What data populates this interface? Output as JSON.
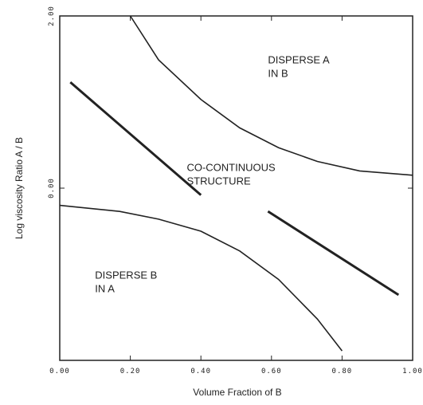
{
  "chart_data": {
    "type": "line",
    "xlabel": "Volume Fraction of B",
    "ylabel": "Log viscosity Ratio A / B",
    "xlim": [
      0,
      1
    ],
    "ylim": [
      -2,
      2
    ],
    "xticks": [
      {
        "value": 0,
        "label": "0.00"
      },
      {
        "value": 0.2,
        "label": "0.20"
      },
      {
        "value": 0.4,
        "label": "0.40"
      },
      {
        "value": 0.6,
        "label": "0.60"
      },
      {
        "value": 0.8,
        "label": "0.80"
      },
      {
        "value": 1,
        "label": "1.00"
      }
    ],
    "yticks": [
      {
        "value": 2,
        "label": "2.00"
      },
      {
        "value": 0,
        "label": "0.00"
      }
    ],
    "grid": false,
    "series": [
      {
        "color": "#222222",
        "line_width": 1.6,
        "x": [
          0.2,
          0.28,
          0.4,
          0.51,
          0.62,
          0.73,
          0.85,
          1.0
        ],
        "values": [
          2.0,
          1.49,
          1.03,
          0.7,
          0.47,
          0.31,
          0.2,
          0.15
        ]
      },
      {
        "color": "#222222",
        "line_width": 1.6,
        "x": [
          0,
          0.17,
          0.28,
          0.4,
          0.51,
          0.62,
          0.73,
          0.8
        ],
        "values": [
          -0.2,
          -0.27,
          -0.36,
          -0.5,
          -0.73,
          -1.06,
          -1.52,
          -1.89
        ]
      },
      {
        "color": "#222222",
        "line_width": 3,
        "x": [
          0.03,
          0.4
        ],
        "values": [
          1.23,
          -0.08
        ]
      },
      {
        "color": "#222222",
        "line_width": 3,
        "x": [
          0.59,
          0.96
        ],
        "values": [
          -0.27,
          -1.24
        ]
      }
    ],
    "annotations": [
      [
        "DISPERSE A",
        "IN B"
      ],
      [
        "CO-CONTINUOUS",
        "STRUCTURE"
      ],
      [
        "DISPERSE B",
        "IN A"
      ]
    ]
  }
}
